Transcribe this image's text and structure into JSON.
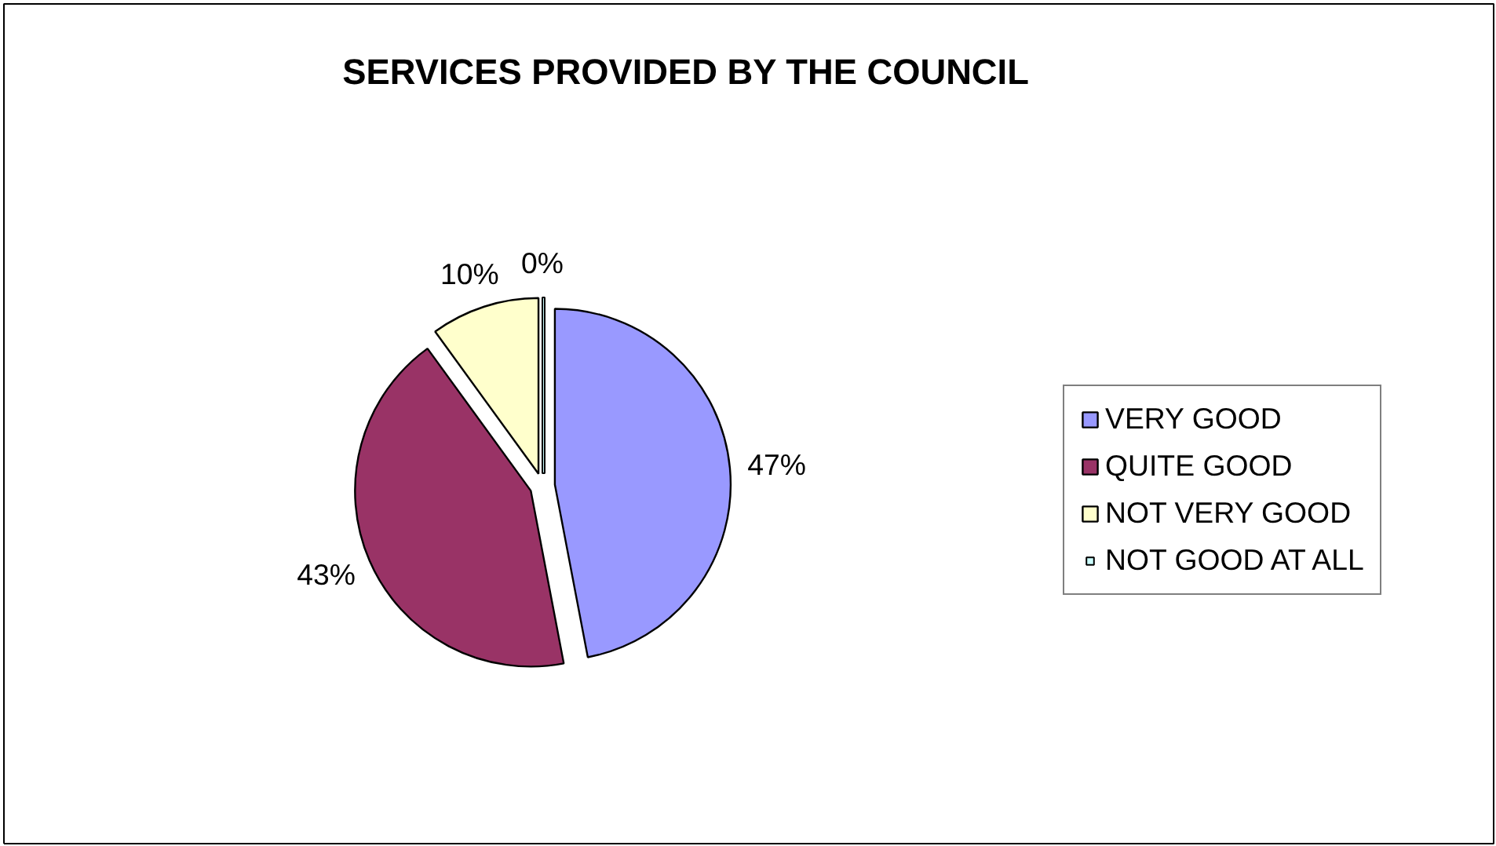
{
  "chart_data": {
    "type": "pie",
    "title": "SERVICES PROVIDED BY THE COUNCIL",
    "categories": [
      "VERY GOOD",
      "QUITE GOOD",
      "NOT VERY GOOD",
      "NOT GOOD AT ALL"
    ],
    "values": [
      47,
      43,
      10,
      0
    ],
    "colors": [
      "#9999ff",
      "#993366",
      "#ffffcc",
      "#ccffff"
    ],
    "value_labels": [
      "47%",
      "43%",
      "10%",
      "0%"
    ],
    "legend": "right"
  }
}
